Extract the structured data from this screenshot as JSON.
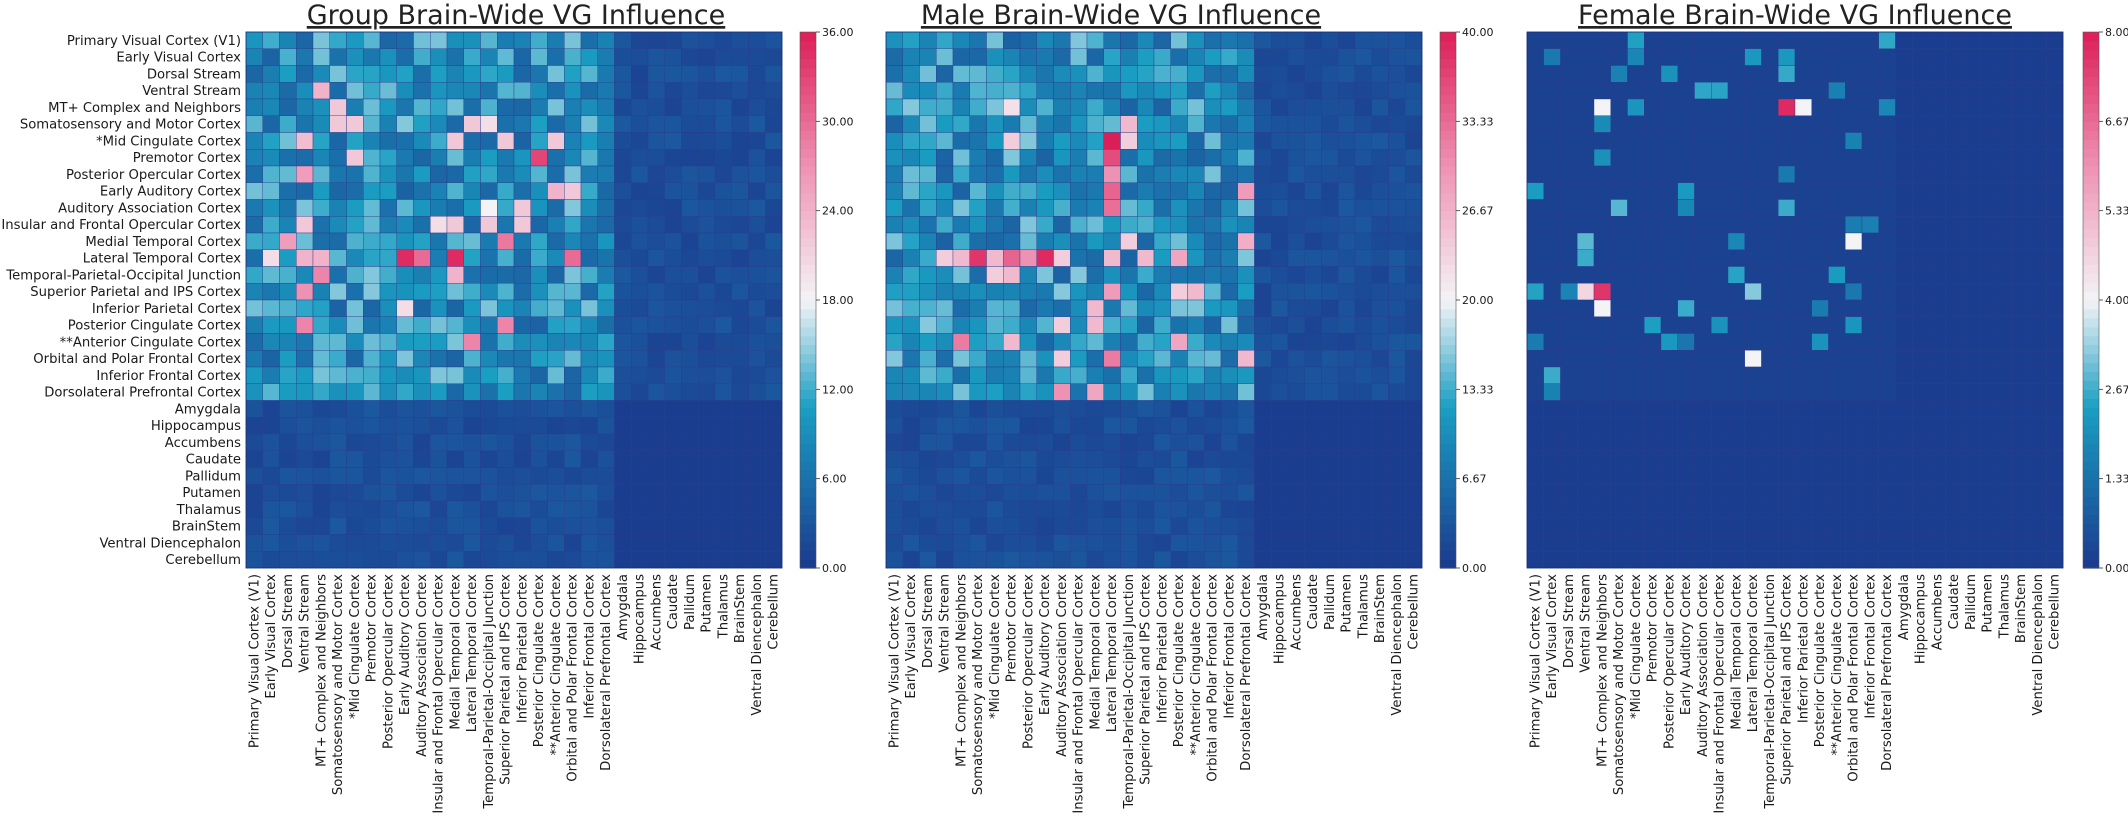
{
  "chart_data": [
    {
      "type": "heatmap",
      "title": "Group Brain-Wide VG Influence",
      "vmin": 0,
      "vmax": 36,
      "colorbar_ticks": [
        "0.00",
        "6.00",
        "12.00",
        "18.00",
        "24.00",
        "30.00",
        "36.00"
      ],
      "show_row_labels": true,
      "hot": [
        [
          13,
          12,
          35
        ],
        [
          14,
          12,
          24
        ],
        [
          5,
          13,
          22
        ],
        [
          6,
          12,
          22
        ],
        [
          5,
          14,
          20
        ],
        [
          11,
          14,
          22
        ],
        [
          7,
          17,
          33
        ],
        [
          13,
          19,
          30
        ],
        [
          6,
          18,
          22
        ],
        [
          9,
          19,
          22
        ],
        [
          18,
          13,
          28
        ],
        [
          6,
          15,
          22
        ],
        [
          17,
          15,
          28
        ],
        [
          12,
          15,
          29
        ],
        [
          5,
          6,
          22
        ],
        [
          7,
          6,
          22
        ],
        [
          13,
          9,
          35
        ],
        [
          16,
          9,
          20
        ],
        [
          13,
          10,
          30
        ],
        [
          13,
          3,
          24
        ],
        [
          8,
          3,
          26
        ],
        [
          6,
          3,
          23
        ],
        [
          11,
          3,
          22
        ],
        [
          15,
          3,
          27
        ],
        [
          17,
          3,
          28
        ],
        [
          12,
          2,
          26
        ],
        [
          13,
          1,
          20
        ],
        [
          9,
          18,
          24
        ],
        [
          10,
          16,
          22
        ],
        [
          11,
          16,
          22
        ],
        [
          10,
          14,
          18
        ],
        [
          14,
          4,
          28
        ],
        [
          13,
          4,
          24
        ],
        [
          4,
          5,
          22
        ],
        [
          5,
          5,
          22
        ],
        [
          3,
          4,
          24
        ],
        [
          11,
          11,
          20
        ],
        [
          11,
          12,
          22
        ]
      ]
    },
    {
      "type": "heatmap",
      "title": "Male Brain-Wide VG Influence",
      "vmin": 0,
      "vmax": 40,
      "colorbar_ticks": [
        "0.00",
        "6.67",
        "13.33",
        "20.00",
        "26.67",
        "33.33",
        "40.00"
      ],
      "show_row_labels": false,
      "hot": [
        [
          13,
          9,
          39
        ],
        [
          13,
          7,
          34
        ],
        [
          13,
          8,
          30
        ],
        [
          6,
          13,
          40
        ],
        [
          7,
          13,
          36
        ],
        [
          9,
          13,
          34
        ],
        [
          8,
          13,
          30
        ],
        [
          10,
          13,
          33
        ],
        [
          13,
          13,
          26
        ],
        [
          15,
          13,
          29
        ],
        [
          19,
          13,
          32
        ],
        [
          6,
          14,
          24
        ],
        [
          5,
          14,
          26
        ],
        [
          12,
          14,
          24
        ],
        [
          13,
          15,
          26
        ],
        [
          13,
          17,
          28
        ],
        [
          15,
          17,
          24
        ],
        [
          18,
          17,
          28
        ],
        [
          19,
          21,
          26
        ],
        [
          12,
          21,
          27
        ],
        [
          9,
          21,
          29
        ],
        [
          15,
          18,
          26
        ],
        [
          13,
          10,
          24
        ],
        [
          17,
          10,
          24
        ],
        [
          19,
          10,
          24
        ],
        [
          21,
          10,
          30
        ],
        [
          21,
          12,
          28
        ],
        [
          17,
          12,
          26
        ],
        [
          16,
          12,
          26
        ],
        [
          13,
          4,
          26
        ],
        [
          13,
          5,
          38
        ],
        [
          13,
          6,
          26
        ],
        [
          14,
          6,
          24
        ],
        [
          4,
          7,
          22
        ],
        [
          6,
          7,
          24
        ],
        [
          14,
          7,
          26
        ],
        [
          18,
          7,
          26
        ],
        [
          18,
          4,
          32
        ],
        [
          13,
          3,
          24
        ]
      ]
    },
    {
      "type": "heatmap",
      "title": "Female Brain-Wide VG Influence",
      "vmin": 0,
      "vmax": 8,
      "colorbar_ticks": [
        "0.00",
        "1.33",
        "2.67",
        "4.00",
        "5.33",
        "6.67",
        "8.00"
      ],
      "show_row_labels": false,
      "hot": [
        [
          15,
          4,
          7.6
        ],
        [
          16,
          4,
          4.0
        ],
        [
          4,
          4,
          4.0
        ],
        [
          4,
          15,
          7.8
        ],
        [
          4,
          16,
          4.0
        ],
        [
          19,
          13,
          4.0
        ],
        [
          12,
          19,
          4.0
        ],
        [
          15,
          3,
          4.6
        ],
        [
          15,
          13,
          3.2
        ]
      ]
    }
  ],
  "regions": [
    "Primary Visual Cortex (V1)",
    "Early Visual Cortex",
    "Dorsal Stream",
    "Ventral Stream",
    "MT+ Complex and Neighbors",
    "Somatosensory and Motor Cortex",
    "*Mid Cingulate Cortex",
    "Premotor Cortex",
    "Posterior Opercular Cortex",
    "Early Auditory Cortex",
    "Auditory Association Cortex",
    "Insular and Frontal Opercular Cortex",
    "Medial Temporal Cortex",
    "Lateral Temporal Cortex",
    "Temporal-Parietal-Occipital Junction",
    "Superior Parietal and IPS Cortex",
    "Inferior Parietal Cortex",
    "Posterior Cingulate Cortex",
    "**Anterior Cingulate Cortex",
    "Orbital and Polar Frontal Cortex",
    "Inferior Frontal Cortex",
    "Dorsolateral Prefrontal Cortex",
    "Amygdala",
    "Hippocampus",
    "Accumbens",
    "Caudate",
    "Pallidum",
    "Putamen",
    "Thalamus",
    "BrainStem",
    "Ventral Diencephalon",
    "Cerebellum"
  ],
  "colors": {
    "low": "#1b3a8e",
    "mid_low": "#1a9ec2",
    "mid": "#f4f4f6",
    "mid_high": "#ee92b3",
    "high": "#dc1e58"
  }
}
